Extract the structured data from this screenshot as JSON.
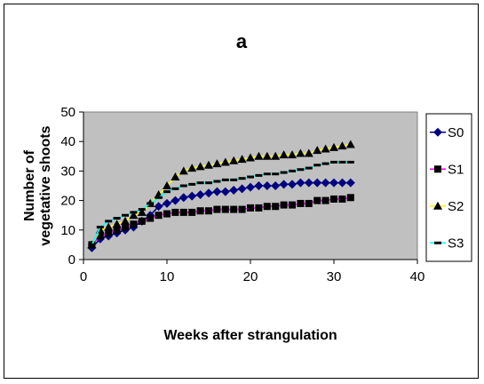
{
  "chart_data": {
    "type": "line",
    "title": "a",
    "xlabel": "Weeks after strangulation",
    "ylabel": "Number of vegetative shoots",
    "ylabel_lines": [
      "Number of",
      "vegetative shoots"
    ],
    "xlim": [
      0,
      40
    ],
    "ylim": [
      0,
      50
    ],
    "xticks": [
      0,
      10,
      20,
      30,
      40
    ],
    "yticks": [
      0,
      10,
      20,
      30,
      40,
      50
    ],
    "grid": false,
    "plot_background": "#c0c0c0",
    "legend_position": "right",
    "x": [
      1,
      2,
      3,
      4,
      5,
      6,
      7,
      8,
      9,
      10,
      11,
      12,
      13,
      14,
      15,
      16,
      17,
      18,
      19,
      20,
      21,
      22,
      23,
      24,
      25,
      26,
      27,
      28,
      29,
      30,
      31,
      32
    ],
    "series": [
      {
        "name": "S0",
        "line_color": "#000080",
        "marker": "diamond",
        "marker_color": "#000080",
        "values": [
          4,
          7,
          8,
          9,
          10,
          11,
          13,
          15,
          18,
          19,
          20,
          21,
          21.5,
          22,
          22.5,
          23,
          23,
          23.5,
          24,
          24.5,
          25,
          25,
          25,
          25.5,
          25.5,
          26,
          26,
          26,
          26,
          26,
          26,
          26
        ]
      },
      {
        "name": "S1",
        "line_color": "#ff00ff",
        "marker": "square",
        "marker_color": "#000000",
        "values": [
          5,
          8,
          9,
          10,
          11,
          12,
          13,
          14,
          15,
          15.5,
          16,
          16,
          16,
          16.5,
          16.5,
          17,
          17,
          17,
          17,
          17.5,
          17.5,
          18,
          18,
          18.5,
          18.5,
          19,
          19,
          20,
          20,
          20.5,
          20.5,
          21
        ]
      },
      {
        "name": "S2",
        "line_color": "#ffff00",
        "marker": "triangle",
        "marker_color": "#000000",
        "values": [
          5,
          10,
          11,
          12,
          13,
          15,
          16,
          19,
          22,
          25,
          28,
          30,
          31,
          31.5,
          32,
          32.5,
          33,
          33.5,
          34,
          34.5,
          35,
          35,
          35,
          35.5,
          35.5,
          36,
          36,
          37,
          37.5,
          38,
          38.5,
          39
        ]
      },
      {
        "name": "S3",
        "line_color": "#00ffff",
        "marker": "dash",
        "marker_color": "#000000",
        "values": [
          5,
          11,
          13,
          14,
          15,
          16,
          17,
          19,
          21,
          23,
          24,
          25,
          25.5,
          26,
          26,
          26.5,
          27,
          27,
          27.5,
          28,
          28.5,
          29,
          29,
          29.5,
          30,
          30.5,
          31,
          32,
          32.5,
          33,
          33,
          33
        ]
      }
    ]
  }
}
